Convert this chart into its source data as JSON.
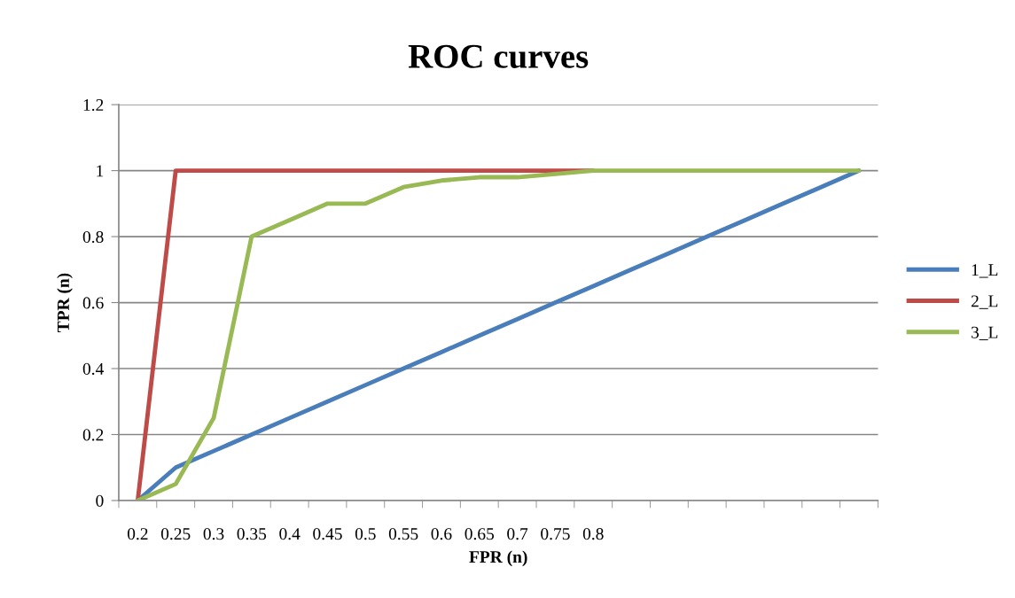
{
  "chart_data": {
    "type": "line",
    "title": "ROC curves",
    "xlabel": "FPR (n)",
    "ylabel": "TPR (n)",
    "categories": [
      "0.2",
      "0.25",
      "0.3",
      "0.35",
      "0.4",
      "0.45",
      "0.5",
      "0.55",
      "0.6",
      "0.65",
      "0.7",
      "0.75",
      "0.8",
      null,
      null,
      null,
      null,
      null,
      null,
      null
    ],
    "series": [
      {
        "name": "1_L",
        "color": "#4a7ebb",
        "values": [
          0,
          0.1,
          0.15,
          0.2,
          0.25,
          0.3,
          0.35,
          0.4,
          0.45,
          0.5,
          0.55,
          0.6,
          0.65,
          0.7,
          0.75,
          0.8,
          0.85,
          0.9,
          0.95,
          1
        ]
      },
      {
        "name": "2_L",
        "color": "#be4b48",
        "values": [
          0,
          1,
          1,
          1,
          1,
          1,
          1,
          1,
          1,
          1,
          1,
          1,
          1,
          null,
          null,
          null,
          null,
          null,
          null,
          null
        ]
      },
      {
        "name": "3_L",
        "color": "#98b954",
        "values": [
          0,
          0.05,
          0.25,
          0.8,
          0.85,
          0.9,
          0.9,
          0.95,
          0.97,
          0.98,
          0.98,
          0.99,
          1,
          1,
          1,
          1,
          1,
          1,
          1,
          1
        ]
      }
    ],
    "ylim": [
      0,
      1.2
    ],
    "yticks": [
      0,
      0.2,
      0.4,
      0.6,
      0.8,
      1,
      1.2
    ],
    "grid": "y",
    "legend": "right",
    "marker": "none",
    "line_style": "solid"
  }
}
